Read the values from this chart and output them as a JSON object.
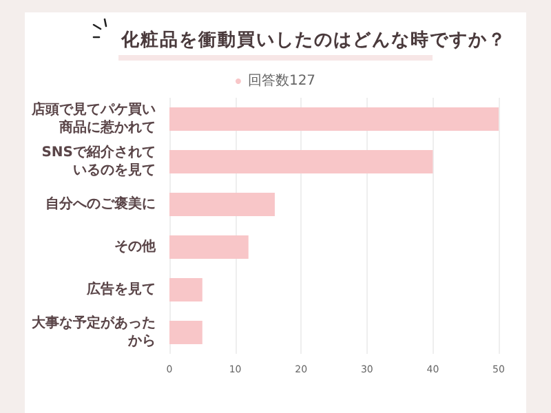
{
  "chart_data": {
    "type": "bar",
    "orientation": "horizontal",
    "title": "化粧品を衝動買いしたのはどんな時ですか？",
    "categories": [
      "店頭で見てパケ買い商品に惹かれて",
      "SNSで紹介されているのを見て",
      "自分へのご褒美に",
      "その他",
      "広告を見て",
      "大事な予定があったから"
    ],
    "series": [
      {
        "name": "回答数127",
        "color": "#f8c6c8",
        "values": [
          50,
          40,
          16,
          12,
          5,
          5
        ]
      }
    ],
    "xlim": [
      0,
      50
    ],
    "xticks": [
      0,
      10,
      20,
      30,
      40,
      50
    ],
    "grid": "x",
    "legend": "top"
  }
}
